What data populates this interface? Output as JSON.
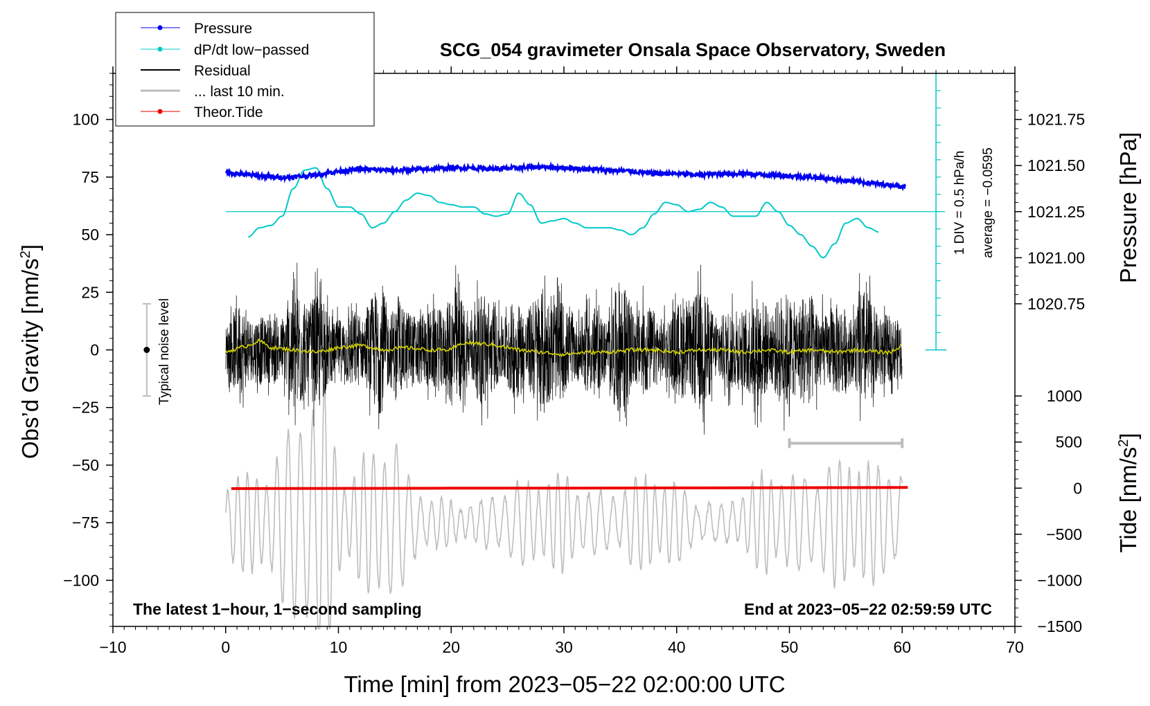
{
  "chart_data": {
    "type": "line",
    "title": "SCG_054 gravimeter Onsala Space Observatory, Sweden",
    "xlabel": "Time [min] from 2023−05−22 02:00:00 UTC",
    "ylabel_left": "Obs’d Gravity [nm/s",
    "ylabel_left_sup": "2",
    "ylabel_left_end": "]",
    "ylabel_right_top": "Pressure [hPa]",
    "ylabel_right_bottom": "Tide [nm/s",
    "ylabel_right_bottom_sup": "2",
    "ylabel_right_bottom_end": "]",
    "xlim": [
      -10,
      70
    ],
    "ylim_left": [
      -120,
      120
    ],
    "x_ticks": [
      -10,
      0,
      10,
      20,
      30,
      40,
      50,
      60,
      70
    ],
    "x_tick_labels": [
      "−10",
      "0",
      "10",
      "20",
      "30",
      "40",
      "50",
      "60",
      "70"
    ],
    "y_left_ticks": [
      100,
      75,
      50,
      25,
      0,
      -25,
      -50,
      -75,
      -100
    ],
    "y_left_tick_labels": [
      "100",
      "75",
      "50",
      "25",
      "0",
      "−25",
      "−50",
      "−75",
      "−100"
    ],
    "pressure_axis": {
      "ticks": [
        1021.75,
        1021.5,
        1021.25,
        1021.0,
        1020.75
      ],
      "tick_labels": [
        "1021.75",
        "1021.50",
        "1021.25",
        "1021.00",
        "1020.75"
      ],
      "gravity_equiv_at_1021": 40,
      "gravity_per_hpa": 80
    },
    "tide_axis": {
      "ticks": [
        1000,
        500,
        0,
        -500,
        -1000,
        -1500
      ],
      "tick_labels": [
        "1000",
        "500",
        "0",
        "−500",
        "−1000",
        "−1500"
      ],
      "gravity_equiv_at_0": -60,
      "gravity_per_nms2": 0.04
    },
    "legend": [
      {
        "label": "Pressure",
        "color": "#0000ee",
        "marker": true
      },
      {
        "label": "dP/dt low−passed",
        "color": "#00c8c8",
        "marker": true
      },
      {
        "label": "Residual",
        "color": "#000000",
        "marker": false
      },
      {
        "label": "... last 10 min.",
        "color": "#bdbdbd",
        "marker": false
      },
      {
        "label": "Theor.Tide",
        "color": "#ee0000",
        "marker": true
      }
    ],
    "series": [
      {
        "name": "Pressure",
        "color": "#0000ee",
        "x": [
          0,
          2,
          4,
          6,
          8,
          10,
          12,
          14,
          16,
          18,
          20,
          22,
          24,
          26,
          28,
          30,
          32,
          34,
          36,
          38,
          40,
          42,
          44,
          46,
          48,
          50,
          52,
          54,
          56,
          58,
          60.3
        ],
        "y": [
          77,
          76,
          75,
          75,
          76,
          77.5,
          78.5,
          78,
          78,
          78.5,
          79,
          79,
          78.5,
          79,
          79.5,
          79,
          78.5,
          78,
          77.5,
          76.5,
          76.5,
          76,
          76.5,
          76.5,
          76,
          75.5,
          75,
          74,
          73,
          72,
          71
        ]
      },
      {
        "name": "dP/dt low-passed",
        "color": "#00c8c8",
        "x": [
          2,
          3,
          4,
          5,
          6,
          7,
          8,
          9,
          10,
          11,
          12,
          13,
          14,
          15,
          16,
          17,
          18,
          19,
          20,
          21,
          22,
          23,
          24,
          25,
          26,
          27,
          28,
          29,
          30,
          31,
          32,
          33,
          34,
          35,
          36,
          37,
          38,
          39,
          40,
          41,
          42,
          43,
          44,
          45,
          46,
          47,
          48,
          49,
          50,
          51,
          52,
          53,
          54,
          55,
          56,
          57,
          58
        ],
        "y": [
          49,
          53,
          54,
          58,
          70,
          78,
          79,
          70,
          62,
          62,
          59,
          53,
          55,
          60,
          65,
          68,
          67,
          64,
          63,
          62,
          62,
          59,
          58,
          59,
          68,
          63,
          55,
          56,
          57,
          55,
          53,
          53,
          53,
          52,
          50,
          53,
          59,
          64,
          63,
          60,
          61,
          64,
          62,
          58,
          58,
          58,
          64,
          60,
          54,
          50,
          45,
          40,
          46,
          55,
          57,
          53,
          51
        ]
      },
      {
        "name": "Residual",
        "color": "#000000",
        "x_range": [
          0,
          60
        ],
        "envelope_x": [
          0,
          3,
          5,
          6.5,
          8,
          9.5,
          11,
          12.5,
          14,
          15.5,
          17,
          18.5,
          20,
          21.5,
          23,
          24.5,
          26,
          27.5,
          29,
          30.5,
          32,
          33.5,
          35,
          36.5,
          38,
          39.5,
          41,
          42.5,
          44,
          45.5,
          47,
          48.5,
          50,
          51,
          52,
          53.5,
          55,
          56.5,
          58,
          60
        ],
        "envelope_y": [
          25,
          35,
          30,
          45,
          40,
          30,
          38,
          32,
          45,
          28,
          40,
          35,
          42,
          30,
          45,
          38,
          40,
          35,
          48,
          30,
          40,
          28,
          45,
          35,
          40,
          30,
          42,
          38,
          30,
          45,
          40,
          35,
          38,
          50,
          55,
          35,
          30,
          40,
          35,
          30
        ]
      },
      {
        "name": "Residual smoothed",
        "color": "#d4d400",
        "x": [
          0,
          2,
          3,
          4,
          6,
          8,
          10,
          12,
          14,
          16,
          18,
          20,
          21,
          22,
          24,
          26,
          28,
          30,
          32,
          34,
          36,
          38,
          40,
          42,
          44,
          46,
          48,
          50,
          52,
          54,
          56,
          58,
          59,
          60
        ],
        "y": [
          -1,
          2,
          4,
          1,
          0,
          -1,
          1,
          2,
          0,
          1,
          0,
          0,
          3,
          3,
          2,
          0,
          -1,
          -2,
          -1,
          -1,
          0,
          0,
          -1,
          0,
          0,
          -1,
          0,
          -1,
          0,
          -1,
          0,
          -1,
          -1,
          2
        ]
      },
      {
        "name": "... last 10 min.",
        "color": "#bdbdbd",
        "x_range": [
          0,
          60
        ],
        "time_scale": 6,
        "envelope_x": [
          0,
          2,
          4,
          6,
          7,
          8,
          9,
          10,
          11,
          12,
          13,
          14,
          15,
          16,
          18,
          20,
          22,
          24,
          26,
          28,
          30,
          32,
          34,
          36,
          38,
          40,
          42,
          44,
          46,
          48,
          50,
          52,
          54,
          56,
          58,
          60
        ],
        "envelope_y": [
          20,
          22,
          25,
          45,
          60,
          55,
          60,
          30,
          18,
          28,
          35,
          40,
          38,
          22,
          12,
          10,
          8,
          14,
          18,
          20,
          22,
          15,
          12,
          20,
          22,
          18,
          10,
          8,
          14,
          25,
          20,
          22,
          28,
          30,
          25,
          25
        ]
      },
      {
        "name": "Theor.Tide",
        "color": "#ee0000",
        "x": [
          0.5,
          10,
          20,
          30,
          40,
          50,
          60.5
        ],
        "y": [
          -60.2,
          -60.1,
          -60.0,
          -60.0,
          -59.9,
          -59.8,
          -59.7
        ]
      }
    ],
    "scale_bar": {
      "label_div": "1 DIV = 0.5 hPa/h",
      "label_avg": "average = −0.0595",
      "x": 63,
      "y_bottom": 0,
      "y_top": 120,
      "minor_ticks": 16
    },
    "noise_level": {
      "label": "Typical noise level",
      "x": -7,
      "center": 0,
      "half_range": 20
    },
    "last10_range_marker": {
      "x_start": 50,
      "x_end": 60,
      "y": -40.5
    },
    "annotation_left": "The latest 1−hour, 1−second sampling",
    "annotation_right": "End at 2023−05−22 02:59:59 UTC",
    "zero_reference_line_y": 60
  }
}
